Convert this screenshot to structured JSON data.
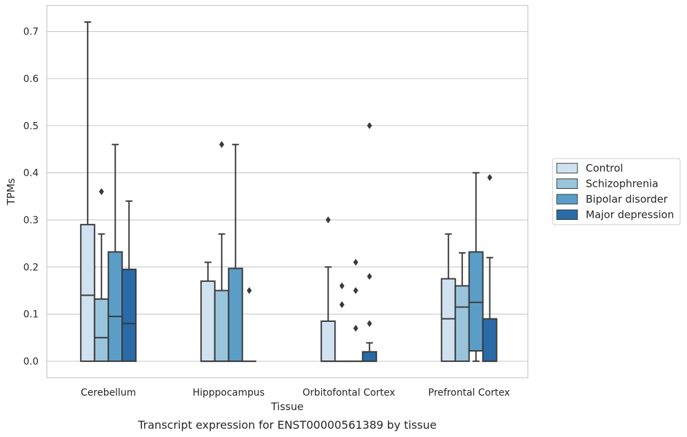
{
  "chart_data": {
    "type": "box",
    "xlabel": "Tissue",
    "ylabel": "TPMs",
    "caption": "Transcript expression for ENST00000561389 by tissue",
    "ylim": [
      -0.035,
      0.755
    ],
    "yticks": [
      "0.0",
      "0.1",
      "0.2",
      "0.3",
      "0.4",
      "0.5",
      "0.6",
      "0.7"
    ],
    "grid": "horizontal",
    "legend_position": "right",
    "categories": [
      "Cerebellum",
      "Hipppocampus",
      "Orbitofontal Cortex",
      "Prefrontal Cortex"
    ],
    "series": [
      {
        "name": "Control",
        "color": "#d0e1f0",
        "boxes": [
          {
            "q1": 0.0,
            "median": 0.14,
            "q3": 0.29,
            "whisker_low": 0.0,
            "whisker_high": 0.72,
            "outliers": []
          },
          {
            "q1": 0.0,
            "median": 0.0,
            "q3": 0.17,
            "whisker_low": 0.0,
            "whisker_high": 0.21,
            "outliers": []
          },
          {
            "q1": 0.0,
            "median": 0.0,
            "q3": 0.085,
            "whisker_low": 0.0,
            "whisker_high": 0.2,
            "outliers": [
              0.3
            ]
          },
          {
            "q1": 0.0,
            "median": 0.09,
            "q3": 0.175,
            "whisker_low": 0.0,
            "whisker_high": 0.27,
            "outliers": []
          }
        ]
      },
      {
        "name": "Schizophrenia",
        "color": "#99c4dc",
        "boxes": [
          {
            "q1": 0.0,
            "median": 0.05,
            "q3": 0.132,
            "whisker_low": 0.0,
            "whisker_high": 0.27,
            "outliers": [
              0.36
            ]
          },
          {
            "q1": 0.0,
            "median": 0.0,
            "q3": 0.15,
            "whisker_low": 0.0,
            "whisker_high": 0.27,
            "outliers": [
              0.46
            ]
          },
          {
            "q1": 0.0,
            "median": 0.0,
            "q3": 0.0,
            "whisker_low": 0.0,
            "whisker_high": 0.0,
            "outliers": [
              0.12,
              0.16
            ]
          },
          {
            "q1": 0.0,
            "median": 0.115,
            "q3": 0.16,
            "whisker_low": 0.0,
            "whisker_high": 0.23,
            "outliers": []
          }
        ]
      },
      {
        "name": "Bipolar disorder",
        "color": "#5a9ec8",
        "boxes": [
          {
            "q1": 0.0,
            "median": 0.095,
            "q3": 0.232,
            "whisker_low": 0.0,
            "whisker_high": 0.46,
            "outliers": []
          },
          {
            "q1": 0.0,
            "median": 0.0,
            "q3": 0.197,
            "whisker_low": 0.0,
            "whisker_high": 0.46,
            "outliers": []
          },
          {
            "q1": 0.0,
            "median": 0.0,
            "q3": 0.0,
            "whisker_low": 0.0,
            "whisker_high": 0.0,
            "outliers": [
              0.07,
              0.15,
              0.21
            ]
          },
          {
            "q1": 0.022,
            "median": 0.125,
            "q3": 0.232,
            "whisker_low": 0.0,
            "whisker_high": 0.4,
            "outliers": []
          }
        ]
      },
      {
        "name": "Major depression",
        "color": "#2a6aa8",
        "boxes": [
          {
            "q1": 0.0,
            "median": 0.08,
            "q3": 0.195,
            "whisker_low": 0.0,
            "whisker_high": 0.34,
            "outliers": []
          },
          {
            "q1": 0.0,
            "median": 0.0,
            "q3": 0.0,
            "whisker_low": 0.0,
            "whisker_high": 0.0,
            "outliers": [
              0.15
            ]
          },
          {
            "q1": 0.0,
            "median": 0.0,
            "q3": 0.02,
            "whisker_low": 0.0,
            "whisker_high": 0.039,
            "outliers": [
              0.08,
              0.18,
              0.5
            ]
          },
          {
            "q1": 0.0,
            "median": 0.0,
            "q3": 0.09,
            "whisker_low": 0.0,
            "whisker_high": 0.22,
            "outliers": [
              0.39
            ]
          }
        ]
      }
    ]
  }
}
